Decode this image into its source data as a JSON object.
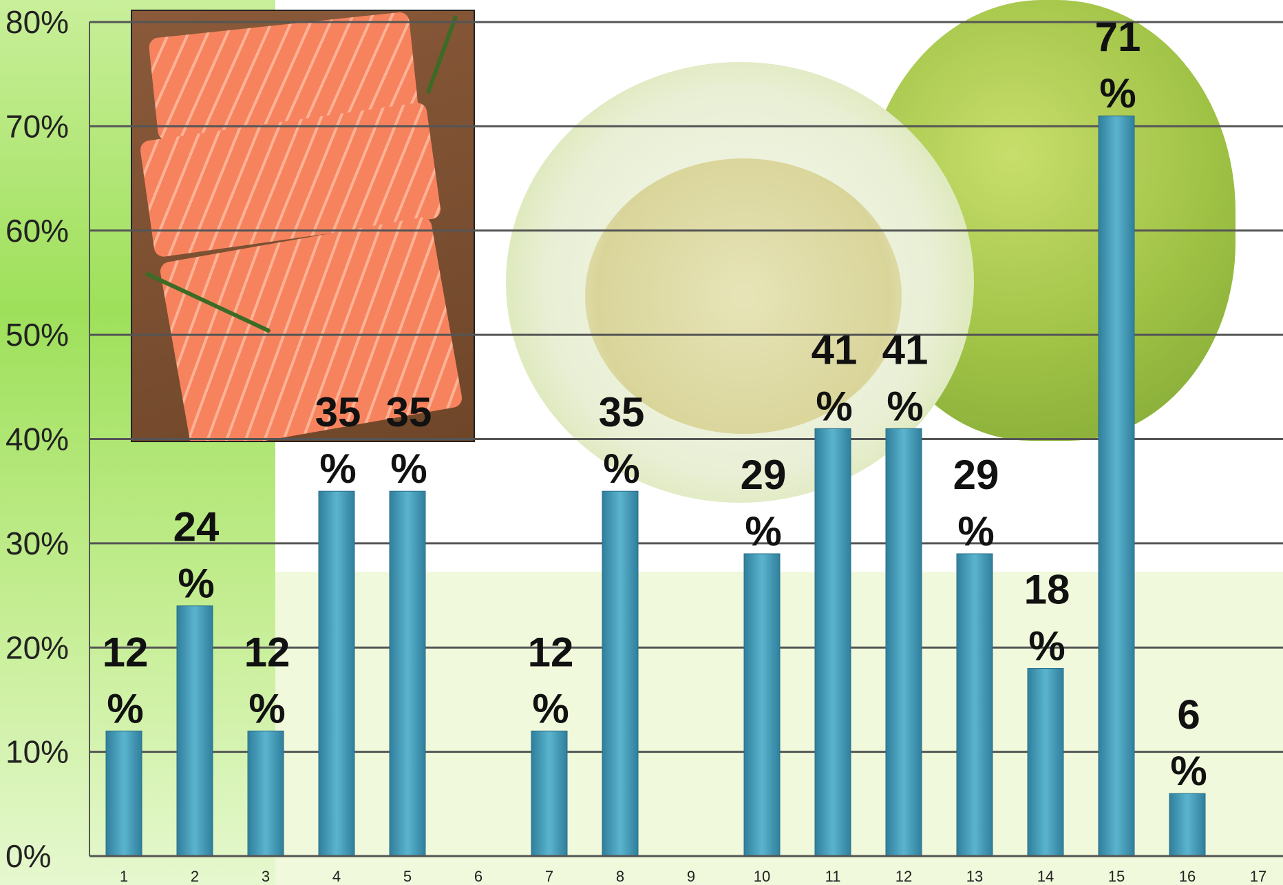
{
  "chart_data": {
    "type": "bar",
    "categories": [
      "1",
      "2",
      "3",
      "4",
      "5",
      "6",
      "7",
      "8",
      "9",
      "10",
      "11",
      "12",
      "13",
      "14",
      "15",
      "16",
      "17"
    ],
    "values": [
      12,
      24,
      12,
      35,
      35,
      null,
      12,
      35,
      null,
      29,
      41,
      41,
      29,
      18,
      71,
      6,
      null
    ],
    "data_labels": [
      [
        "12",
        "%"
      ],
      [
        "24",
        "%"
      ],
      [
        "12",
        "%"
      ],
      [
        "35",
        "%"
      ],
      [
        "35",
        "%"
      ],
      null,
      [
        "12",
        "%"
      ],
      [
        "35",
        "%"
      ],
      null,
      [
        "29",
        "%"
      ],
      [
        "41",
        "%"
      ],
      [
        "41",
        "%"
      ],
      [
        "29",
        "%"
      ],
      [
        "18",
        "%"
      ],
      [
        "71",
        "%"
      ],
      [
        "6",
        "%"
      ],
      null
    ],
    "y_ticks": [
      "0%",
      "10%",
      "20%",
      "30%",
      "40%",
      "50%",
      "60%",
      "70%",
      "80%"
    ],
    "ylim": [
      0,
      80
    ],
    "grid": true,
    "legend": "none",
    "bar_color": "#3a8fad",
    "bar_highlight": "#57b1cc",
    "grid_color": "#555555"
  }
}
